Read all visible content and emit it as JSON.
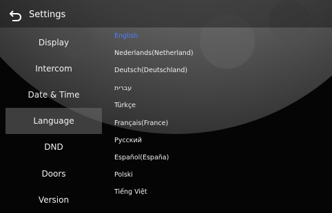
{
  "header": {
    "title": "Settings"
  },
  "menu": {
    "items": [
      "Display",
      "Intercom",
      "Date & Time",
      "Language",
      "DND",
      "Doors",
      "Version"
    ]
  },
  "languages": {
    "items": [
      "English",
      "Nederlands(Netherland)",
      "Deutsch(Deutschland)",
      "עברית",
      "Türkçe",
      "Français(France)",
      "Русский",
      "Español(España)",
      "Polski",
      "Tiếng Việt"
    ]
  }
}
